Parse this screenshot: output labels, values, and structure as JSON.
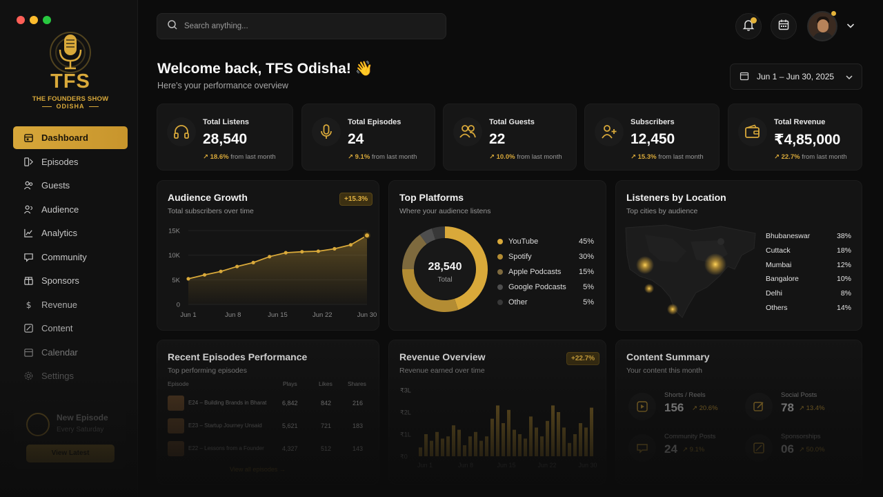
{
  "brand": {
    "logo_text": "TFS",
    "logo_sub": "THE FOUNDERS SHOW",
    "logo_sub2": "ODISHA",
    "accent": "#d9a93a"
  },
  "sidebar": {
    "items": [
      {
        "label": "Dashboard",
        "icon": "dashboard-icon"
      },
      {
        "label": "Episodes",
        "icon": "episodes-icon"
      },
      {
        "label": "Guests",
        "icon": "guests-icon"
      },
      {
        "label": "Audience",
        "icon": "audience-icon"
      },
      {
        "label": "Analytics",
        "icon": "analytics-icon"
      },
      {
        "label": "Community",
        "icon": "community-icon"
      },
      {
        "label": "Sponsors",
        "icon": "sponsors-icon"
      },
      {
        "label": "Revenue",
        "icon": "revenue-icon"
      },
      {
        "label": "Content",
        "icon": "content-icon"
      },
      {
        "label": "Calendar",
        "icon": "calendar-icon"
      },
      {
        "label": "Settings",
        "icon": "settings-icon"
      }
    ],
    "promo": {
      "title": "New Episode",
      "subtitle": "Every Saturday",
      "button": "View Latest"
    }
  },
  "header": {
    "search_placeholder": "Search anything...",
    "welcome": "Welcome back, TFS Odisha! 👋",
    "welcome_sub": "Here's your performance overview",
    "date_range": "Jun 1 – Jun 30, 2025"
  },
  "stats": [
    {
      "label": "Total Listens",
      "value": "28,540",
      "delta": "18.6%",
      "delta_text": "from last month",
      "icon": "headphones-icon"
    },
    {
      "label": "Total Episodes",
      "value": "24",
      "delta": "9.1%",
      "delta_text": "from last month",
      "icon": "microphone-icon"
    },
    {
      "label": "Total Guests",
      "value": "22",
      "delta": "10.0%",
      "delta_text": "from last month",
      "icon": "users-icon"
    },
    {
      "label": "Subscribers",
      "value": "12,450",
      "delta": "15.3%",
      "delta_text": "from last month",
      "icon": "user-plus-icon"
    },
    {
      "label": "Total Revenue",
      "value": "₹4,85,000",
      "delta": "22.7%",
      "delta_text": "from last month",
      "icon": "wallet-icon"
    }
  ],
  "audience_growth": {
    "title": "Audience Growth",
    "subtitle": "Total subscribers over time",
    "badge": "+15.3%",
    "yticks": [
      "15K",
      "10K",
      "5K",
      "0"
    ],
    "xticks": [
      "Jun 1",
      "Jun 8",
      "Jun 15",
      "Jun 22",
      "Jun 30"
    ]
  },
  "top_platforms": {
    "title": "Top Platforms",
    "subtitle": "Where your audience listens",
    "center_value": "28,540",
    "center_label": "Total",
    "items": [
      {
        "name": "YouTube",
        "pct": "45%",
        "color": "#d9a93a"
      },
      {
        "name": "Spotify",
        "pct": "30%",
        "color": "#b38c33"
      },
      {
        "name": "Apple Podcasts",
        "pct": "15%",
        "color": "#7e6a3e"
      },
      {
        "name": "Google Podcasts",
        "pct": "5%",
        "color": "#4e4e4e"
      },
      {
        "name": "Other",
        "pct": "5%",
        "color": "#383838"
      }
    ]
  },
  "locations": {
    "title": "Listeners by Location",
    "subtitle": "Top cities by audience",
    "items": [
      {
        "city": "Bhubaneswar",
        "pct": "38%"
      },
      {
        "city": "Cuttack",
        "pct": "18%"
      },
      {
        "city": "Mumbai",
        "pct": "12%"
      },
      {
        "city": "Bangalore",
        "pct": "10%"
      },
      {
        "city": "Delhi",
        "pct": "8%"
      },
      {
        "city": "Others",
        "pct": "14%"
      }
    ]
  },
  "recent_episodes": {
    "title": "Recent Episodes Performance",
    "subtitle": "Top performing episodes",
    "headers": [
      "Episode",
      "Plays",
      "Likes",
      "Shares"
    ],
    "rows": [
      {
        "episode": "E24 – Building Brands in Bharat",
        "plays": "6,842",
        "likes": "842",
        "shares": "216"
      },
      {
        "episode": "E23 – Startup Journey Unsaid",
        "plays": "5,621",
        "likes": "721",
        "shares": "183"
      },
      {
        "episode": "E22 – Lessons from a Founder",
        "plays": "4,327",
        "likes": "512",
        "shares": "143"
      }
    ],
    "link": "View all episodes →"
  },
  "revenue_overview": {
    "title": "Revenue Overview",
    "subtitle": "Revenue earned over time",
    "badge": "+22.7%",
    "yticks": [
      "₹3L",
      "₹2L",
      "₹1L",
      "₹0"
    ],
    "xticks": [
      "Jun 1",
      "Jun 8",
      "Jun 15",
      "Jun 22",
      "Jun 30"
    ]
  },
  "content_summary": {
    "title": "Content Summary",
    "subtitle": "Your content this month",
    "items": [
      {
        "label": "Shorts / Reels",
        "value": "156",
        "delta": "↗ 20.6%",
        "icon": "reels-icon"
      },
      {
        "label": "Social Posts",
        "value": "78",
        "delta": "↗ 13.4%",
        "icon": "edit-icon"
      },
      {
        "label": "Community Posts",
        "value": "24",
        "delta": "↗ 9.1%",
        "icon": "community-post-icon"
      },
      {
        "label": "Sponsorships",
        "value": "06",
        "delta": "↗ 50.0%",
        "icon": "sponsorship-icon"
      }
    ]
  },
  "chart_data": [
    {
      "type": "area",
      "title": "Audience Growth",
      "x": [
        "Jun 1",
        "Jun 4",
        "Jun 8",
        "Jun 11",
        "Jun 13",
        "Jun 15",
        "Jun 18",
        "Jun 20",
        "Jun 22",
        "Jun 25",
        "Jun 28",
        "Jun 30"
      ],
      "values": [
        5200,
        6000,
        6700,
        7700,
        8500,
        9700,
        10500,
        10700,
        10800,
        11300,
        12100,
        14000
      ],
      "ylim": [
        0,
        15000
      ],
      "ylabel": "",
      "xlabel": ""
    },
    {
      "type": "pie",
      "title": "Top Platforms",
      "categories": [
        "YouTube",
        "Spotify",
        "Apple Podcasts",
        "Google Podcasts",
        "Other"
      ],
      "values": [
        45,
        30,
        15,
        5,
        5
      ]
    },
    {
      "type": "bar",
      "title": "Revenue Overview",
      "values": [
        0.4,
        1.0,
        0.7,
        1.1,
        0.8,
        0.9,
        1.4,
        1.2,
        0.5,
        0.9,
        1.1,
        0.7,
        0.9,
        1.7,
        2.3,
        1.5,
        2.1,
        1.2,
        1.0,
        0.8,
        1.8,
        1.3,
        0.9,
        1.6,
        2.3,
        2.0,
        1.3,
        0.6,
        1.0,
        1.5,
        1.3,
        2.2
      ],
      "ylim": [
        0,
        3
      ],
      "ylabel": "",
      "xlabel": ""
    }
  ]
}
